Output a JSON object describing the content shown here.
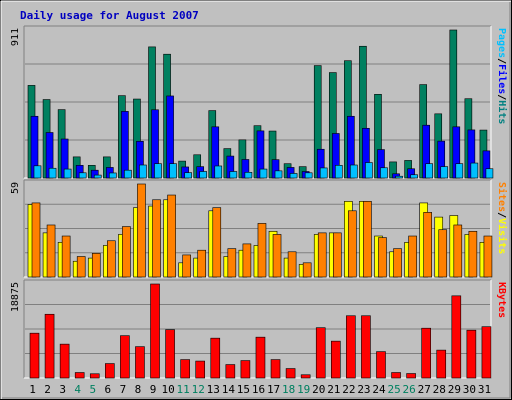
{
  "chart_data": {
    "type": "bar",
    "title": "Daily usage for August 2007",
    "categories": [
      "1",
      "2",
      "3",
      "4",
      "5",
      "6",
      "7",
      "8",
      "9",
      "10",
      "11",
      "12",
      "13",
      "14",
      "15",
      "16",
      "17",
      "18",
      "19",
      "20",
      "21",
      "22",
      "23",
      "24",
      "25",
      "26",
      "27",
      "28",
      "29",
      "30",
      "31"
    ],
    "weekend_days": [
      "4",
      "5",
      "11",
      "12",
      "18",
      "19",
      "25",
      "26"
    ],
    "panels": [
      {
        "id": "top",
        "ymax_label": "911",
        "ylim": [
          0,
          911
        ],
        "right_label": [
          "Pages",
          "/",
          "Files",
          "/",
          "Hits"
        ],
        "right_label_colors": [
          "#00c0ff",
          "#000000",
          "#0000ff",
          "#000000",
          "#008080"
        ],
        "series": [
          {
            "name": "Hits",
            "color": "#008060",
            "values": [
              570,
              483,
              421,
              130,
              78,
              130,
              507,
              486,
              807,
              762,
              104,
              143,
              415,
              181,
              235,
              322,
              289,
              88,
              70,
              692,
              649,
              722,
              811,
              515,
              99,
              108,
              575,
              395,
              911,
              488,
              295
            ]
          },
          {
            "name": "Files",
            "color": "#0000ff",
            "values": [
              380,
              280,
              240,
              78,
              48,
              65,
              410,
              226,
              420,
              505,
              68,
              70,
              315,
              135,
              114,
              290,
              113,
              65,
              40,
              177,
              274,
              380,
              306,
              175,
              26,
              57,
              325,
              227,
              315,
              296,
              167
            ]
          },
          {
            "name": "Pages",
            "color": "#00c0ff",
            "values": [
              75,
              60,
              55,
              32,
              18,
              31,
              48,
              80,
              88,
              88,
              33,
              40,
              74,
              40,
              35,
              55,
              44,
              28,
              32,
              62,
              78,
              80,
              95,
              63,
              11,
              20,
              88,
              70,
              88,
              92,
              57
            ]
          }
        ]
      },
      {
        "id": "middle",
        "ymax_label": "59",
        "ylim": [
          0,
          59
        ],
        "right_label": [
          "Sites",
          "/",
          "Visits"
        ],
        "right_label_colors": [
          "#ff8000",
          "#000000",
          "#ffff00"
        ],
        "series": [
          {
            "name": "Visits",
            "color": "#ffff00",
            "values": [
              46,
              28,
              22,
              10,
              12,
              20,
              27,
              44,
              45,
              49,
              9,
              12,
              42,
              13,
              17,
              20,
              29,
              12,
              8,
              27,
              28,
              48,
              48,
              26,
              16,
              22,
              47,
              38,
              39,
              27,
              22
            ]
          },
          {
            "name": "Sites",
            "color": "#ff8000",
            "values": [
              47,
              33,
              26,
              13,
              15,
              23,
              32,
              59,
              49,
              52,
              14,
              17,
              44,
              18,
              21,
              34,
              27,
              16,
              9,
              28,
              28,
              42,
              48,
              25,
              18,
              26,
              41,
              30,
              33,
              29,
              26
            ]
          }
        ]
      },
      {
        "id": "bottom",
        "ymax_label": "18875",
        "ylim": [
          0,
          18875
        ],
        "right_label": [
          "KBytes"
        ],
        "right_label_colors": [
          "#ff0000"
        ],
        "series": [
          {
            "name": "KBytes",
            "color": "#ff0000",
            "values": [
              9000,
              12800,
              6800,
              1100,
              850,
              2900,
              8500,
              6300,
              18875,
              9700,
              3700,
              3400,
              8000,
              2700,
              3500,
              8200,
              3700,
              1900,
              650,
              10100,
              7400,
              12500,
              12500,
              5300,
              1100,
              900,
              10000,
              5600,
              16500,
              9600,
              10300
            ]
          }
        ]
      }
    ]
  }
}
